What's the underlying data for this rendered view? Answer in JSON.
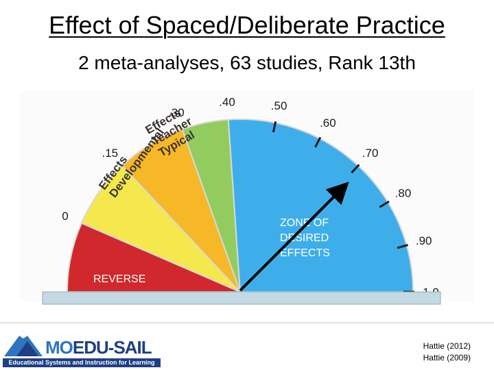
{
  "slide": {
    "title": "Effect of Spaced/Deliberate Practice",
    "subtitle": "2 meta-analyses, 63 studies, Rank 13th"
  },
  "chart_data": {
    "type": "barometer",
    "title": "",
    "scale_min": -0.15,
    "scale_max": 1.0,
    "tick_labels": [
      {
        "value": 0.0,
        "label": "0"
      },
      {
        "value": 0.15,
        "label": ".15"
      },
      {
        "value": 0.3,
        "label": ".30"
      },
      {
        "value": 0.4,
        "label": ".40"
      },
      {
        "value": 0.5,
        "label": ".50"
      },
      {
        "value": 0.6,
        "label": ".60"
      },
      {
        "value": 0.7,
        "label": ".70"
      },
      {
        "value": 0.8,
        "label": ".80"
      },
      {
        "value": 0.9,
        "label": ".90"
      },
      {
        "value": 1.0,
        "label": "1.0"
      }
    ],
    "zones": [
      {
        "label": "REVERSE",
        "from": -0.15,
        "to": 0.0,
        "color": "#d0282d"
      },
      {
        "label": "Developmental Effects",
        "from": 0.0,
        "to": 0.15,
        "color": "#f4e84c"
      },
      {
        "label": "Typical Teacher Effects",
        "from": 0.15,
        "to": 0.3,
        "color": "#f6b826"
      },
      {
        "label": "",
        "from": 0.3,
        "to": 0.4,
        "color": "#93cc5e"
      },
      {
        "label": "ZONE OF DESIRED EFFECTS",
        "from": 0.4,
        "to": 1.0,
        "color": "#3eaeeb"
      }
    ],
    "zone_label_lines": {
      "reverse": "REVERSE",
      "developmental": [
        "Developmental",
        "Effects"
      ],
      "typical": [
        "Typical",
        "Teacher",
        "Effects"
      ],
      "desired": [
        "ZONE OF",
        "DESIRED",
        "EFFECTS"
      ]
    },
    "pointer": {
      "value": 0.71,
      "color": "#000000"
    }
  },
  "logo": {
    "part_a": "MO",
    "part_b": "EDU-SAIL",
    "tagline": "Educational Systems and Instruction for Learning"
  },
  "citations": [
    "Hattie (2012)",
    "Hattie (2009)"
  ]
}
